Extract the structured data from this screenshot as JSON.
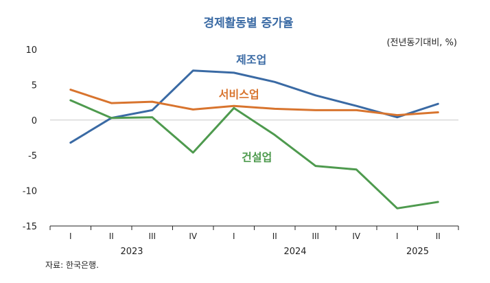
{
  "chart_data": {
    "type": "line",
    "title": "경제활동별 증가율",
    "unit_note": "(전년동기대비, %)",
    "source": "자료: 한국은행.",
    "categories": [
      "I",
      "II",
      "III",
      "IV",
      "I",
      "II",
      "III",
      "IV",
      "I",
      "II"
    ],
    "years": [
      {
        "label": "2023",
        "span": [
          0,
          3
        ]
      },
      {
        "label": "2024",
        "span": [
          4,
          7
        ]
      },
      {
        "label": "2025",
        "span": [
          8,
          9
        ]
      }
    ],
    "ylim": [
      -15,
      10
    ],
    "yticks": [
      10,
      5,
      0,
      -5,
      -10,
      -15
    ],
    "grid": false,
    "zero_line": true,
    "series": [
      {
        "name": "제조업",
        "color": "#3a6aa4",
        "values": [
          -3.2,
          0.3,
          1.4,
          7.0,
          6.7,
          5.4,
          3.5,
          2.0,
          0.4,
          2.3
        ]
      },
      {
        "name": "서비스업",
        "color": "#d8742e",
        "values": [
          4.3,
          2.4,
          2.6,
          1.5,
          2.0,
          1.6,
          1.4,
          1.4,
          0.7,
          1.1
        ]
      },
      {
        "name": "건설업",
        "color": "#4e9a4e",
        "values": [
          2.8,
          0.3,
          0.4,
          -4.6,
          1.7,
          -2.1,
          -6.5,
          -7.0,
          -12.5,
          -11.6
        ]
      }
    ]
  }
}
